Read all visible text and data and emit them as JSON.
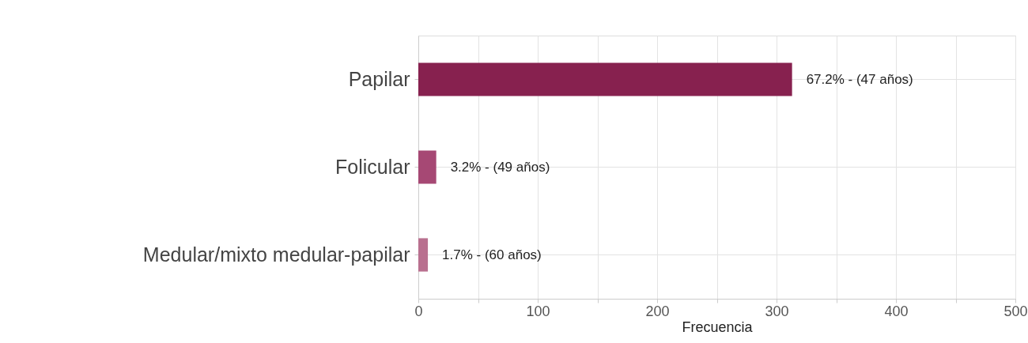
{
  "chart_data": {
    "type": "bar",
    "orientation": "horizontal",
    "xlabel": "Frecuencia",
    "categories": [
      "Papilar",
      "Folicular",
      "Medular/mixto medular-papilar"
    ],
    "values": [
      313,
      15,
      8
    ],
    "colors": [
      "#87214f",
      "#a64874",
      "#b9708f"
    ],
    "annotations": [
      {
        "text": "67.2% - (47 años)",
        "x": 313,
        "y": "Papilar"
      },
      {
        "text": "3.2% - (49 años)",
        "x": 15,
        "y": "Folicular"
      },
      {
        "text": "1.7% - (60 años)",
        "x": 8,
        "y": "Medular/mixto medular-papilar"
      }
    ],
    "xlim": [
      0,
      500
    ],
    "xticks": [
      0,
      {
        "value": 50,
        "label": null
      },
      100,
      {
        "value": 150,
        "label": null
      },
      200,
      {
        "value": 250,
        "label": null
      },
      300,
      {
        "value": 350,
        "label": null
      },
      400,
      {
        "value": 450,
        "label": null
      },
      500
    ],
    "grid": true
  }
}
